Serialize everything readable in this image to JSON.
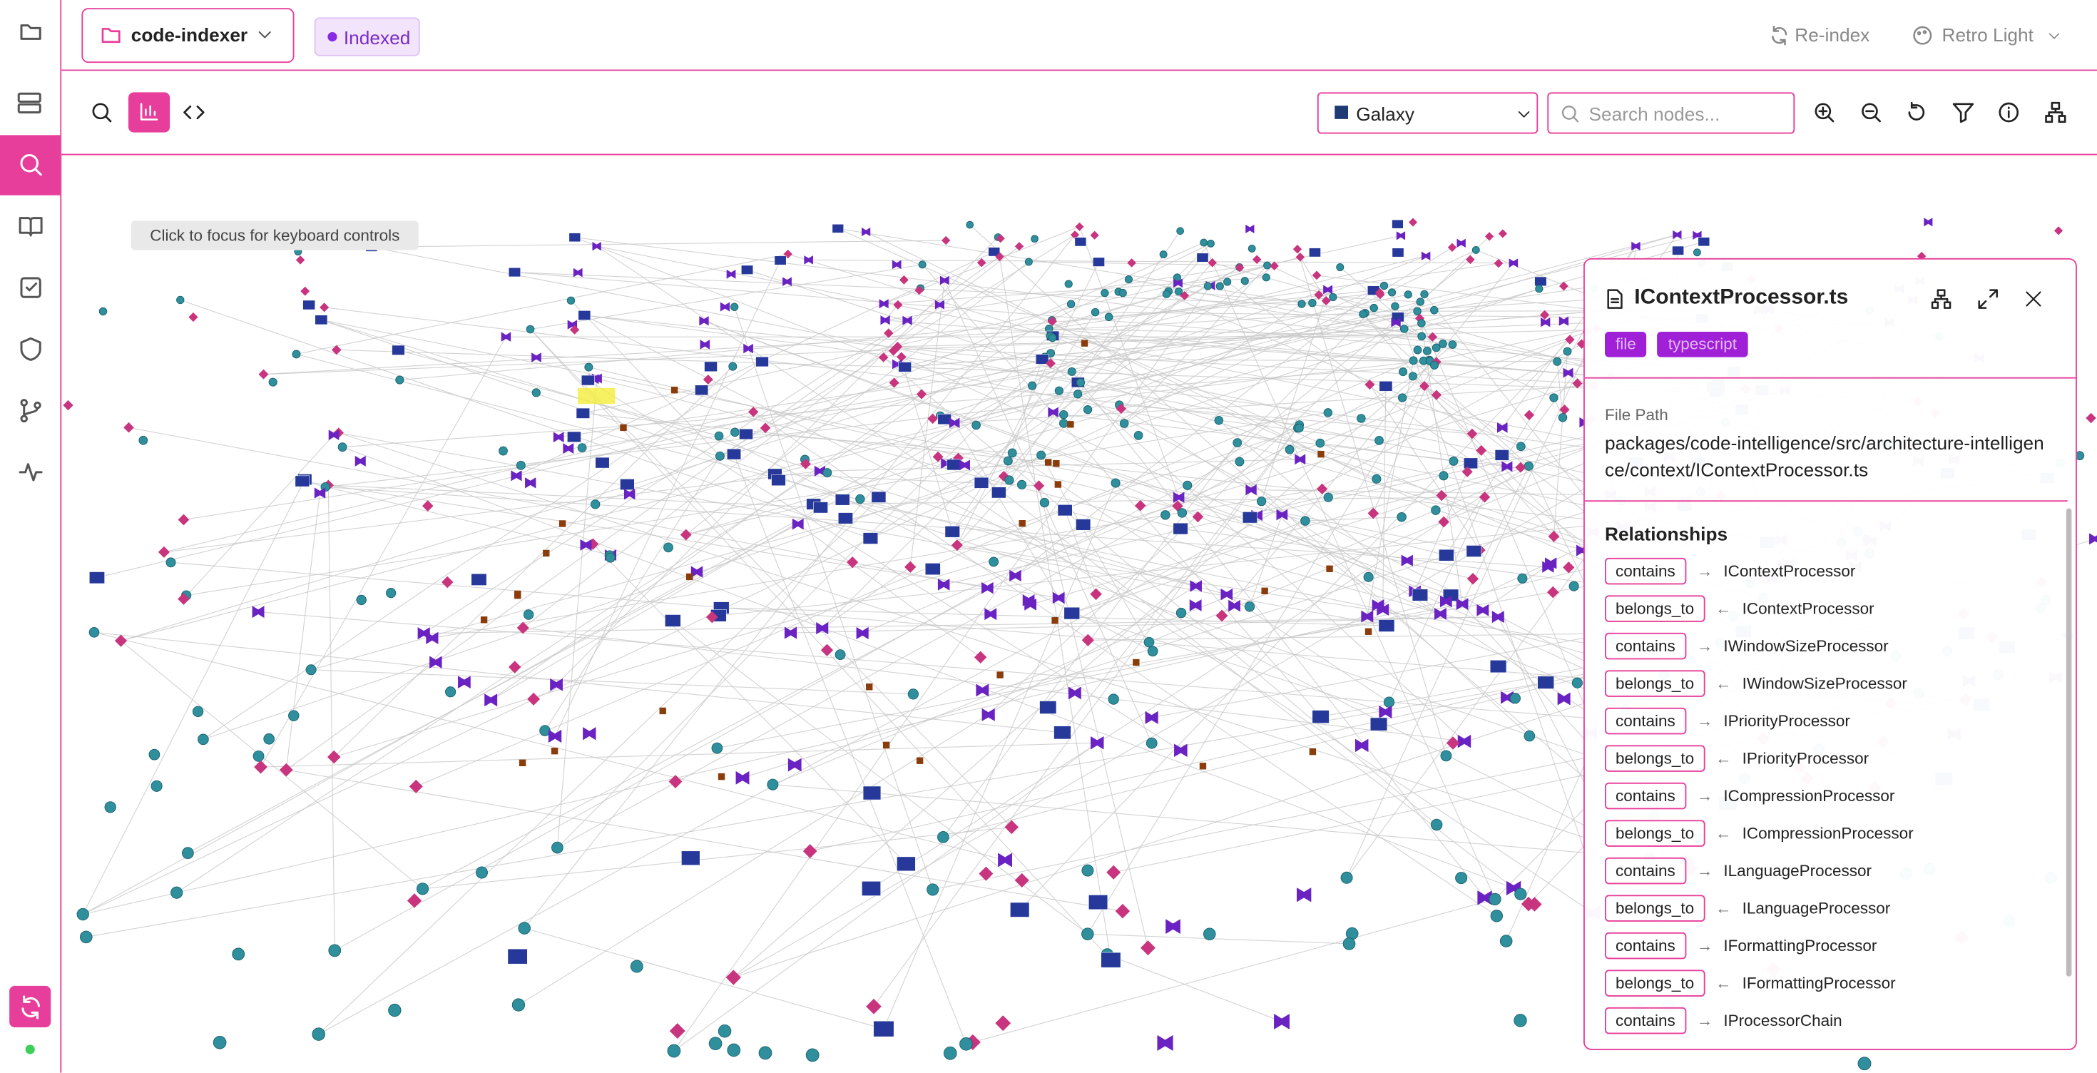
{
  "header": {
    "project": "code-indexer",
    "status": "Indexed",
    "reindex": "Re-index",
    "theme": "Retro Light"
  },
  "toolbar": {
    "layout": "Galaxy",
    "search_placeholder": "Search nodes..."
  },
  "hint": "Click to focus for keyboard controls",
  "panel": {
    "title": "IContextProcessor.ts",
    "tags": [
      "file",
      "typescript"
    ],
    "file_path_label": "File Path",
    "file_path": "packages/code-intelligence/src/architecture-intelligence/context/IContextProcessor.ts",
    "relationships_title": "Relationships",
    "relationships": [
      {
        "type": "contains",
        "arrow": "→",
        "target": "IContextProcessor"
      },
      {
        "type": "belongs_to",
        "arrow": "←",
        "target": "IContextProcessor"
      },
      {
        "type": "contains",
        "arrow": "→",
        "target": "IWindowSizeProcessor"
      },
      {
        "type": "belongs_to",
        "arrow": "←",
        "target": "IWindowSizeProcessor"
      },
      {
        "type": "contains",
        "arrow": "→",
        "target": "IPriorityProcessor"
      },
      {
        "type": "belongs_to",
        "arrow": "←",
        "target": "IPriorityProcessor"
      },
      {
        "type": "contains",
        "arrow": "→",
        "target": "ICompressionProcessor"
      },
      {
        "type": "belongs_to",
        "arrow": "←",
        "target": "ICompressionProcessor"
      },
      {
        "type": "contains",
        "arrow": "→",
        "target": "ILanguageProcessor"
      },
      {
        "type": "belongs_to",
        "arrow": "←",
        "target": "ILanguageProcessor"
      },
      {
        "type": "contains",
        "arrow": "→",
        "target": "IFormattingProcessor"
      },
      {
        "type": "belongs_to",
        "arrow": "←",
        "target": "IFormattingProcessor"
      },
      {
        "type": "contains",
        "arrow": "→",
        "target": "IProcessorChain"
      }
    ]
  }
}
